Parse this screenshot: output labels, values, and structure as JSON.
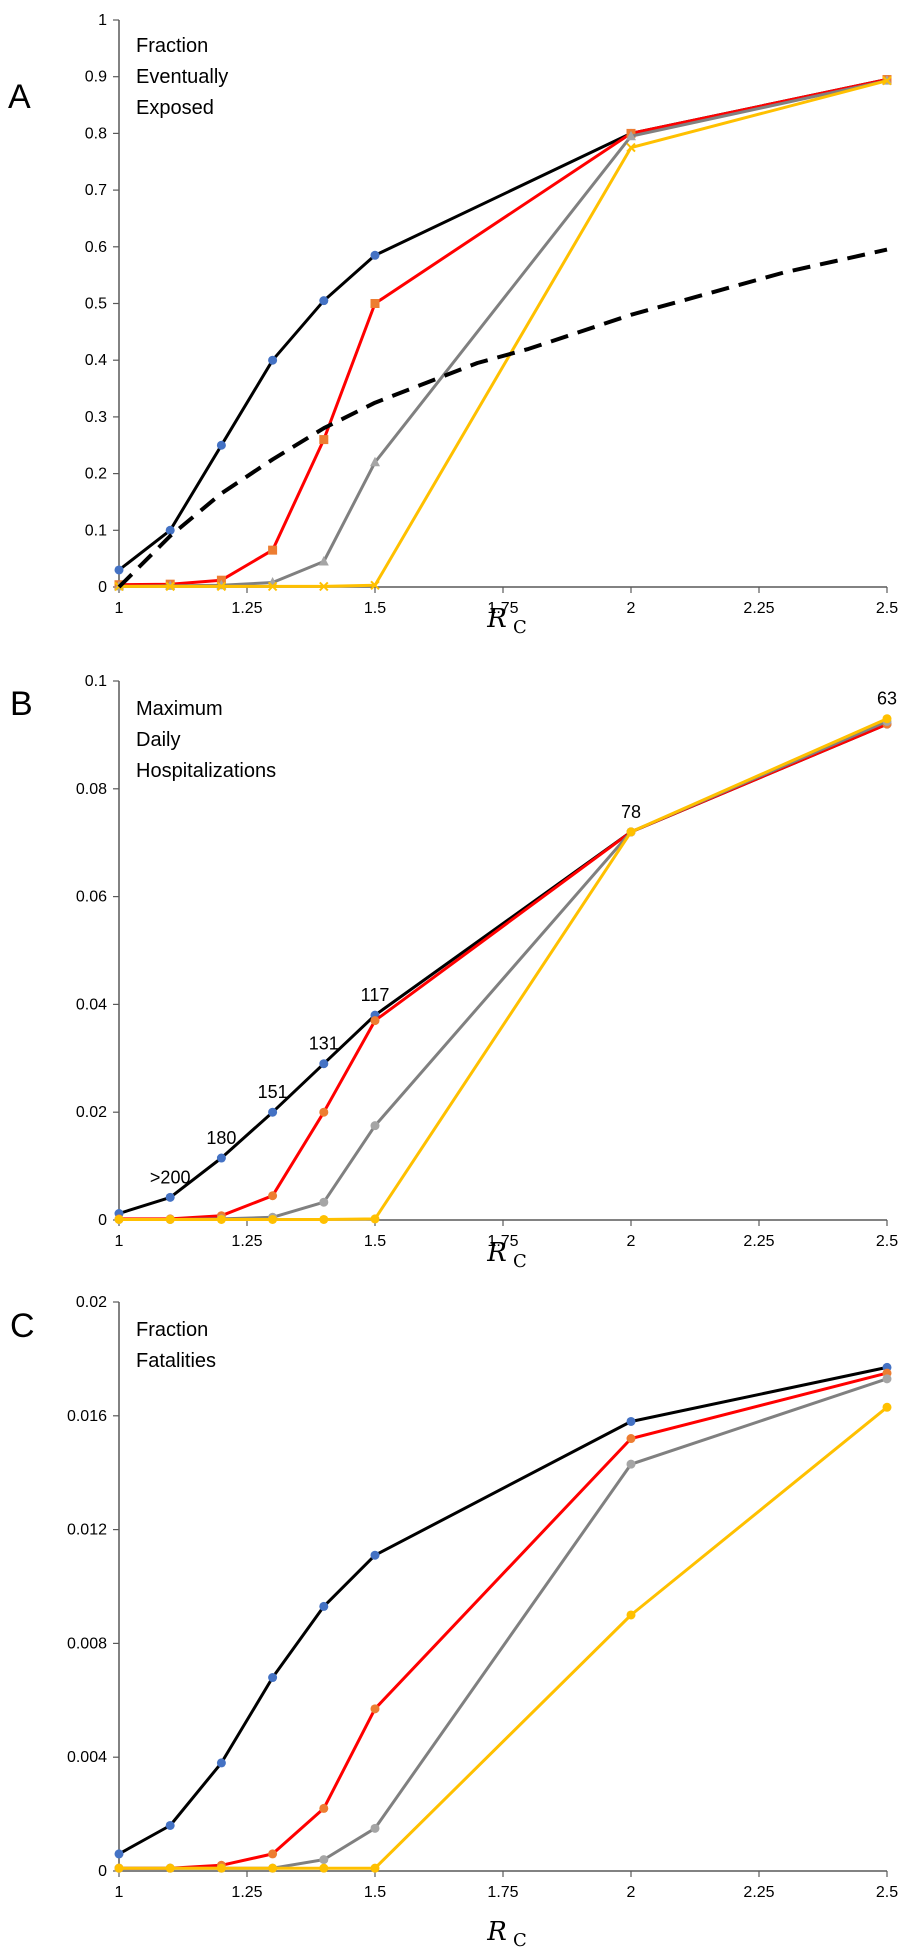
{
  "chart_data": [
    {
      "type": "line",
      "panel_label": "A",
      "title": "Fraction Eventually Exposed",
      "title_lines": [
        "Fraction",
        "Eventually",
        "Exposed"
      ],
      "xlabel": "R",
      "xlabel_sub": "C",
      "xlim": [
        1,
        2.5
      ],
      "ylim": [
        0,
        1
      ],
      "xticks": [
        1,
        1.25,
        1.5,
        1.75,
        2,
        2.25,
        2.5
      ],
      "xtick_labels": [
        "1",
        "1.25",
        "1.5",
        "1.75",
        "2",
        "2.25",
        "2.5"
      ],
      "yticks": [
        0,
        0.1,
        0.2,
        0.3,
        0.4,
        0.5,
        0.6,
        0.7,
        0.8,
        0.9,
        1
      ],
      "ytick_labels": [
        "0",
        "0.1",
        "0.2",
        "0.3",
        "0.4",
        "0.5",
        "0.6",
        "0.7",
        "0.8",
        "0.9",
        "1"
      ],
      "series": [
        {
          "color": "#000000",
          "marker_color": "#4472C4",
          "marker": "circle",
          "x": [
            1,
            1.1,
            1.2,
            1.3,
            1.4,
            1.5,
            2,
            2.5
          ],
          "y": [
            0.03,
            0.1,
            0.25,
            0.4,
            0.505,
            0.585,
            0.8,
            0.895
          ]
        },
        {
          "color": "#FF0000",
          "marker_color": "#ED7D31",
          "marker": "square",
          "x": [
            1,
            1.1,
            1.2,
            1.3,
            1.4,
            1.5,
            2,
            2.5
          ],
          "y": [
            0.004,
            0.005,
            0.012,
            0.065,
            0.26,
            0.5,
            0.8,
            0.895
          ]
        },
        {
          "color": "#808080",
          "marker_color": "#A5A5A5",
          "marker": "triangle",
          "x": [
            1,
            1.1,
            1.2,
            1.3,
            1.4,
            1.5,
            2,
            2.5
          ],
          "y": [
            0.001,
            0.002,
            0.003,
            0.008,
            0.045,
            0.22,
            0.795,
            0.893
          ]
        },
        {
          "color": "#FFC000",
          "marker_color": "#FFC000",
          "marker": "x",
          "x": [
            1,
            1.1,
            1.2,
            1.3,
            1.4,
            1.5,
            2,
            2.5
          ],
          "y": [
            0.001,
            0.001,
            0.001,
            0.001,
            0.001,
            0.003,
            0.775,
            0.893
          ]
        },
        {
          "color": "#000000",
          "dashed": true,
          "marker": "none",
          "x": [
            1,
            1.1,
            1.2,
            1.3,
            1.4,
            1.5,
            1.6,
            1.7,
            1.8,
            1.9,
            2,
            2.1,
            2.2,
            2.3,
            2.4,
            2.5
          ],
          "y": [
            0.0,
            0.09,
            0.165,
            0.225,
            0.28,
            0.325,
            0.36,
            0.395,
            0.42,
            0.45,
            0.48,
            0.505,
            0.53,
            0.555,
            0.575,
            0.595
          ]
        }
      ]
    },
    {
      "type": "line",
      "panel_label": "B",
      "title": "Maximum Daily Hospitalizations",
      "title_lines": [
        "Maximum",
        "Daily",
        "Hospitalizations"
      ],
      "xlabel": "R",
      "xlabel_sub": "C",
      "xlim": [
        1,
        2.5
      ],
      "ylim": [
        0,
        0.1
      ],
      "xticks": [
        1,
        1.25,
        1.5,
        1.75,
        2,
        2.25,
        2.5
      ],
      "xtick_labels": [
        "1",
        "1.25",
        "1.5",
        "1.75",
        "2",
        "2.25",
        "2.5"
      ],
      "yticks": [
        0,
        0.02,
        0.04,
        0.06,
        0.08,
        0.1
      ],
      "ytick_labels": [
        "0",
        "0.02",
        "0.04",
        "0.06",
        "0.08",
        "0.1"
      ],
      "series": [
        {
          "color": "#000000",
          "marker_color": "#4472C4",
          "marker": "circle",
          "x": [
            1,
            1.1,
            1.2,
            1.3,
            1.4,
            1.5,
            2,
            2.5
          ],
          "y": [
            0.0012,
            0.0042,
            0.0115,
            0.02,
            0.029,
            0.038,
            0.072,
            0.092
          ]
        },
        {
          "color": "#FF0000",
          "marker_color": "#ED7D31",
          "marker": "circle",
          "x": [
            1,
            1.1,
            1.2,
            1.3,
            1.4,
            1.5,
            2,
            2.5
          ],
          "y": [
            0.0002,
            0.0002,
            0.0008,
            0.0045,
            0.02,
            0.037,
            0.072,
            0.092
          ]
        },
        {
          "color": "#808080",
          "marker_color": "#A5A5A5",
          "marker": "circle",
          "x": [
            1,
            1.1,
            1.2,
            1.3,
            1.4,
            1.5,
            2,
            2.5
          ],
          "y": [
            0.0001,
            0.0001,
            0.0002,
            0.0005,
            0.0033,
            0.0175,
            0.072,
            0.0925
          ]
        },
        {
          "color": "#FFC000",
          "marker_color": "#FFC000",
          "marker": "circle",
          "x": [
            1,
            1.1,
            1.2,
            1.3,
            1.4,
            1.5,
            2,
            2.5
          ],
          "y": [
            0.0001,
            0.0001,
            0.0001,
            0.0001,
            0.0001,
            0.0002,
            0.072,
            0.093
          ]
        }
      ],
      "annotations": [
        {
          "text": ">200",
          "x": 1.1,
          "y": 0.0042
        },
        {
          "text": "180",
          "x": 1.2,
          "y": 0.0115
        },
        {
          "text": "151",
          "x": 1.3,
          "y": 0.02
        },
        {
          "text": "131",
          "x": 1.4,
          "y": 0.029
        },
        {
          "text": "117",
          "x": 1.5,
          "y": 0.038
        },
        {
          "text": "78",
          "x": 2,
          "y": 0.072
        },
        {
          "text": "63",
          "x": 2.5,
          "y": 0.093
        }
      ]
    },
    {
      "type": "line",
      "panel_label": "C",
      "title": "Fraction Fatalities",
      "title_lines": [
        "Fraction",
        "Fatalities"
      ],
      "xlabel": "R",
      "xlabel_sub": "C",
      "xlim": [
        1,
        2.5
      ],
      "ylim": [
        0,
        0.02
      ],
      "xticks": [
        1,
        1.25,
        1.5,
        1.75,
        2,
        2.25,
        2.5
      ],
      "xtick_labels": [
        "1",
        "1.25",
        "1.5",
        "1.75",
        "2",
        "2.25",
        "2.5"
      ],
      "yticks": [
        0,
        0.004,
        0.008,
        0.012,
        0.016,
        0.02
      ],
      "ytick_labels": [
        "0",
        "0.004",
        "0.008",
        "0.012",
        "0.016",
        "0.02"
      ],
      "series": [
        {
          "color": "#000000",
          "marker_color": "#4472C4",
          "marker": "circle",
          "x": [
            1,
            1.1,
            1.2,
            1.3,
            1.4,
            1.5,
            2,
            2.5
          ],
          "y": [
            0.0006,
            0.0016,
            0.0038,
            0.0068,
            0.0093,
            0.0111,
            0.0158,
            0.0177
          ]
        },
        {
          "color": "#FF0000",
          "marker_color": "#ED7D31",
          "marker": "circle",
          "x": [
            1,
            1.1,
            1.2,
            1.3,
            1.4,
            1.5,
            2,
            2.5
          ],
          "y": [
            0.0001,
            0.0001,
            0.0002,
            0.0006,
            0.0022,
            0.0057,
            0.0152,
            0.0175
          ]
        },
        {
          "color": "#808080",
          "marker_color": "#A5A5A5",
          "marker": "circle",
          "x": [
            1,
            1.1,
            1.2,
            1.3,
            1.4,
            1.5,
            2,
            2.5
          ],
          "y": [
            0.0001,
            0.0001,
            0.0001,
            0.0001,
            0.0004,
            0.0015,
            0.0143,
            0.0173
          ]
        },
        {
          "color": "#FFC000",
          "marker_color": "#FFC000",
          "marker": "circle",
          "x": [
            1,
            1.1,
            1.2,
            1.3,
            1.4,
            1.5,
            2,
            2.5
          ],
          "y": [
            0.0001,
            0.0001,
            0.0001,
            0.0001,
            0.0001,
            0.0001,
            0.009,
            0.0163
          ]
        }
      ]
    }
  ]
}
